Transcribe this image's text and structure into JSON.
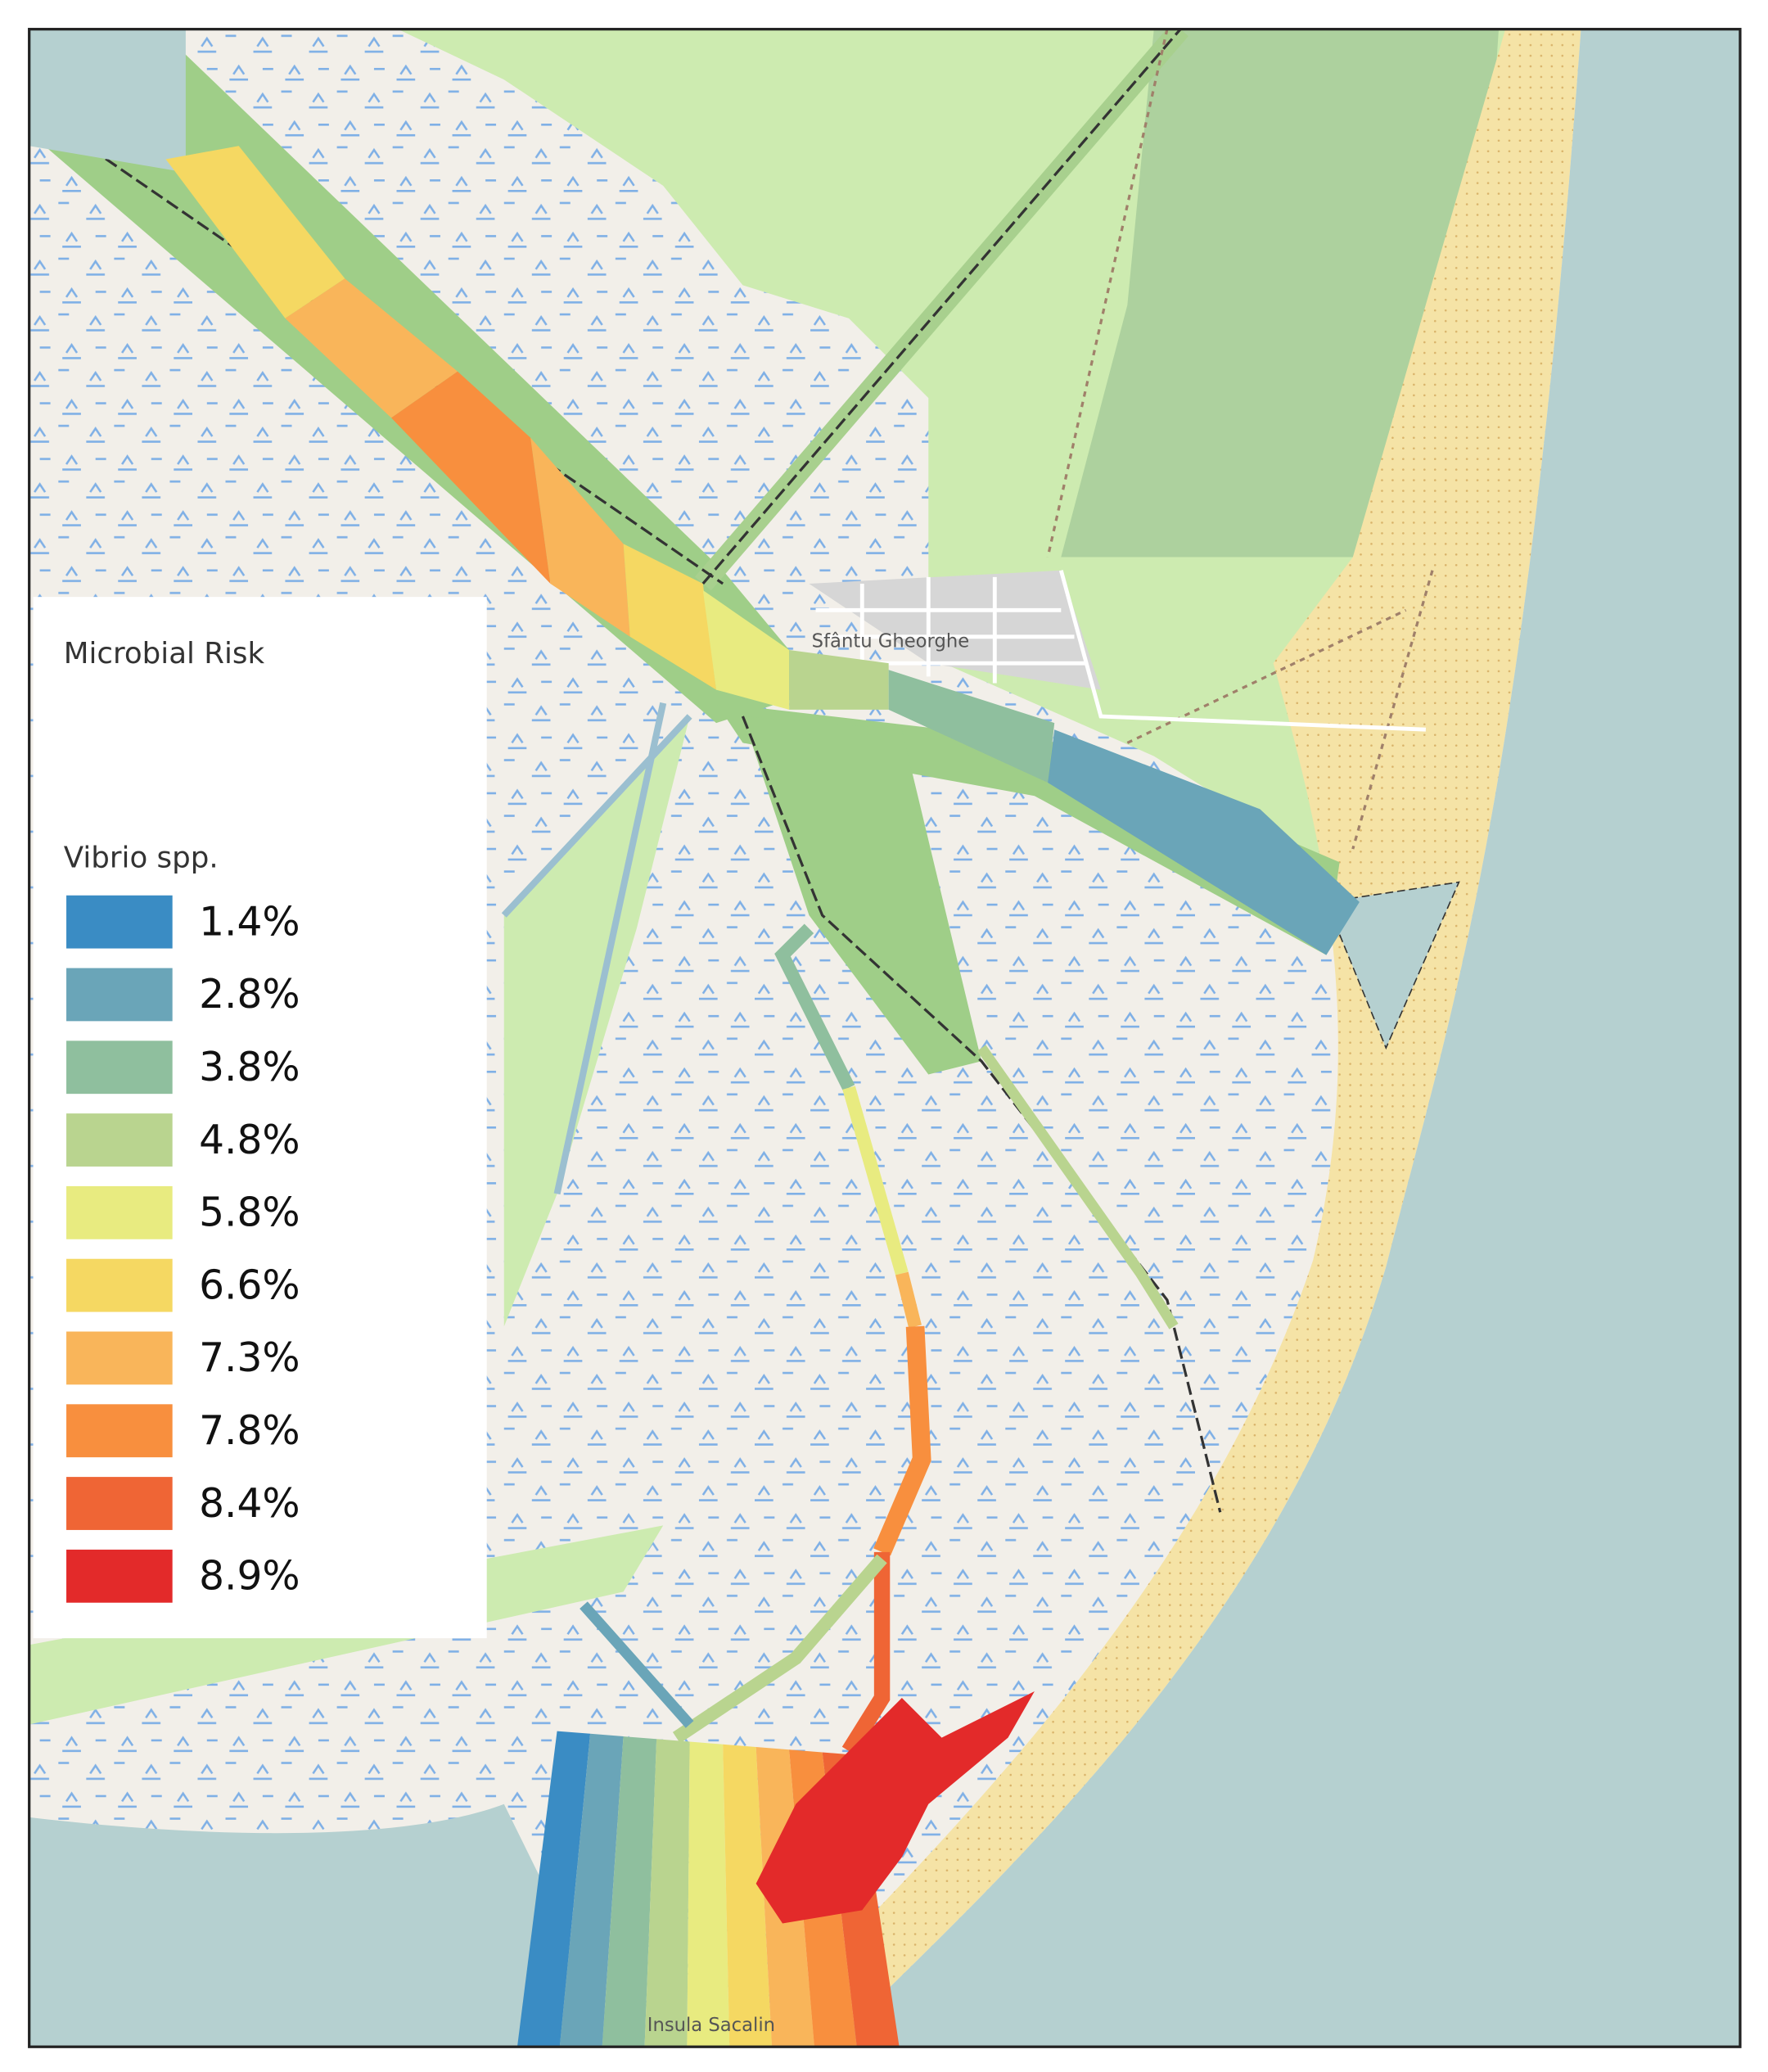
{
  "legend": {
    "title": "Microbial Risk",
    "subtitle": "Vibrio spp.",
    "items": [
      {
        "label": "1.4%",
        "color": "#3a8cc4"
      },
      {
        "label": "2.8%",
        "color": "#6aa5b8"
      },
      {
        "label": "3.8%",
        "color": "#8fbf9e"
      },
      {
        "label": "4.8%",
        "color": "#b9d48f"
      },
      {
        "label": "5.8%",
        "color": "#e8eb80"
      },
      {
        "label": "6.6%",
        "color": "#f5d862"
      },
      {
        "label": "7.3%",
        "color": "#f9b55a"
      },
      {
        "label": "7.8%",
        "color": "#f88f3e"
      },
      {
        "label": "8.4%",
        "color": "#ef6535"
      },
      {
        "label": "8.9%",
        "color": "#e32a2a"
      }
    ]
  },
  "places": [
    "Sfântu Gheorghe",
    "Insula Sacalin"
  ]
}
